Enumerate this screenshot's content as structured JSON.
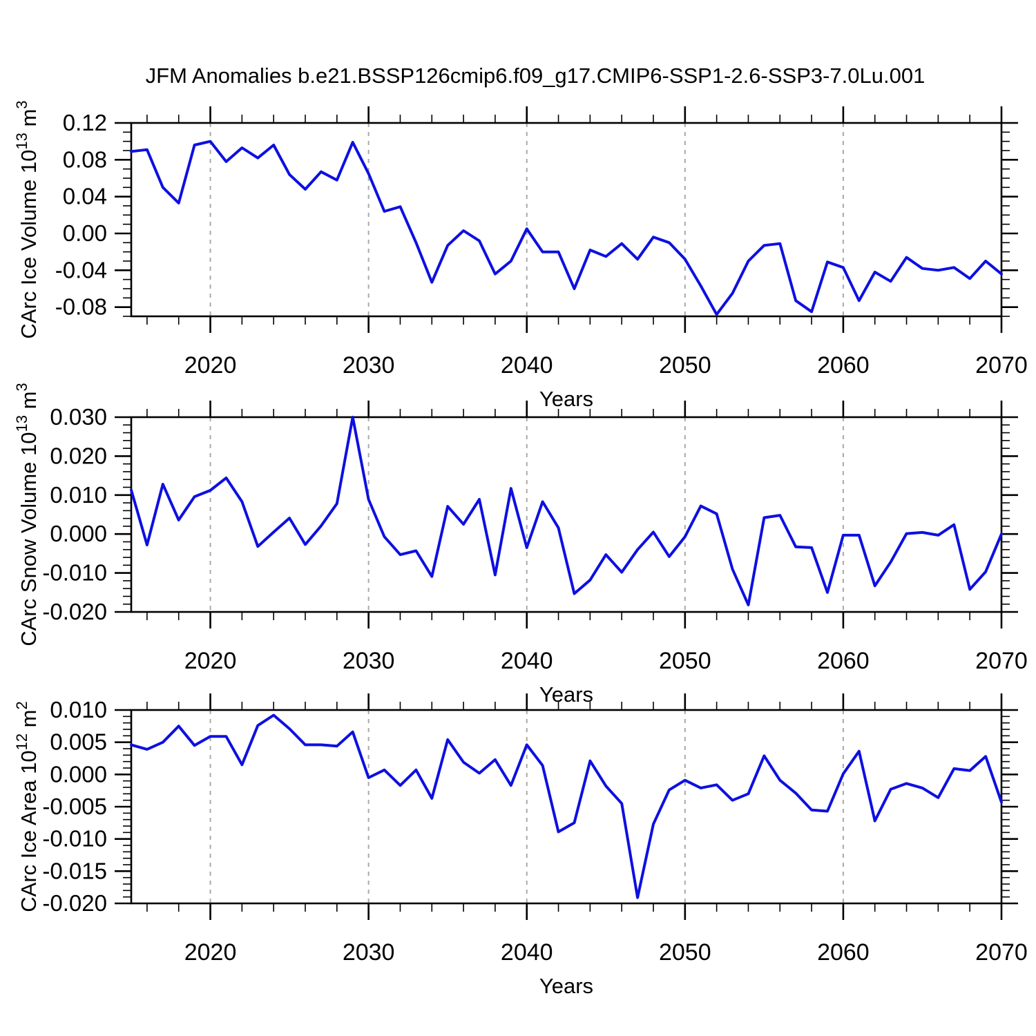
{
  "title": "JFM Anomalies b.e21.BSSP126cmip6.f09_g17.CMIP6-SSP1-2.6-SSP3-7.0Lu.001",
  "colors": {
    "line": "#0d10e0",
    "grid": "#a9a9a9",
    "frame": "#000000",
    "background": "#ffffff"
  },
  "x_axis": {
    "label": "Years",
    "min": 2015,
    "max": 2070,
    "major_ticks": [
      2020,
      2030,
      2040,
      2050,
      2060,
      2070
    ],
    "major_tick_labels": [
      "2020",
      "2030",
      "2040",
      "2050",
      "2060",
      "2070"
    ],
    "minor_step": 2,
    "gridlines": [
      2020,
      2030,
      2040,
      2050,
      2060
    ]
  },
  "chart_data": [
    {
      "type": "line",
      "name": "ice-volume",
      "ylabel": "CArc Ice Volume 10^13 m^3",
      "ylabel_parts": [
        [
          "CArc Ice Volume 10",
          false
        ],
        [
          "13",
          true
        ],
        [
          " m",
          false
        ],
        [
          "3",
          true
        ]
      ],
      "ylim": [
        -0.09,
        0.12
      ],
      "yticks": [
        0.12,
        0.08,
        0.04,
        0.0,
        -0.04,
        -0.08
      ],
      "ytick_labels": [
        "0.12",
        "0.08",
        "0.04",
        "0.00",
        "-0.04",
        "-0.08"
      ],
      "y_minor_step": 0.01,
      "xlabel": "Years",
      "x_start": 2015,
      "x_step": 1,
      "grid": "dashed-vertical",
      "legend": "none",
      "values": [
        0.089,
        0.091,
        0.05,
        0.033,
        0.096,
        0.1,
        0.078,
        0.093,
        0.082,
        0.096,
        0.064,
        0.048,
        0.067,
        0.058,
        0.099,
        0.065,
        0.024,
        0.029,
        -0.01,
        -0.053,
        -0.013,
        0.003,
        -0.008,
        -0.044,
        -0.03,
        0.005,
        -0.02,
        -0.02,
        -0.06,
        -0.018,
        -0.025,
        -0.011,
        -0.028,
        -0.004,
        -0.01,
        -0.028,
        -0.057,
        -0.088,
        -0.065,
        -0.03,
        -0.013,
        -0.011,
        -0.073,
        -0.085,
        -0.031,
        -0.037,
        -0.073,
        -0.042,
        -0.052,
        -0.026,
        -0.038,
        -0.04,
        -0.037,
        -0.049,
        -0.03,
        -0.044
      ]
    },
    {
      "type": "line",
      "name": "snow-volume",
      "ylabel": "CArc Snow Volume 10^13 m^3",
      "ylabel_parts": [
        [
          "CArc Snow Volume 10",
          false
        ],
        [
          "13",
          true
        ],
        [
          " m",
          false
        ],
        [
          "3",
          true
        ]
      ],
      "ylim": [
        -0.02,
        0.03
      ],
      "yticks": [
        0.03,
        0.02,
        0.01,
        0.0,
        -0.01,
        -0.02
      ],
      "ytick_labels": [
        "0.030",
        "0.020",
        "0.010",
        "0.000",
        "-0.010",
        "-0.020"
      ],
      "y_minor_step": 0.002,
      "xlabel": "Years",
      "x_start": 2015,
      "x_step": 1,
      "grid": "dashed-vertical",
      "legend": "none",
      "values": [
        0.0113,
        -0.0028,
        0.0128,
        0.0036,
        0.0096,
        0.0112,
        0.0144,
        0.0083,
        -0.0032,
        0.0005,
        0.0041,
        -0.0027,
        0.0021,
        0.0078,
        0.03,
        0.0089,
        -0.0007,
        -0.0053,
        -0.0043,
        -0.0109,
        0.0071,
        0.0025,
        0.0089,
        -0.0105,
        0.0117,
        -0.0035,
        0.0083,
        0.0016,
        -0.0153,
        -0.0118,
        -0.0053,
        -0.0098,
        -0.004,
        0.0005,
        -0.0058,
        -0.0007,
        0.0072,
        0.0052,
        -0.009,
        -0.0182,
        0.0042,
        0.0048,
        -0.0033,
        -0.0035,
        -0.015,
        -0.0003,
        -0.0003,
        -0.0133,
        -0.0072,
        0.0001,
        0.0004,
        -0.0003,
        0.0024,
        -0.0142,
        -0.0097,
        0.0
      ]
    },
    {
      "type": "line",
      "name": "ice-area",
      "ylabel": "CArc Ice Area 10^12 m^2",
      "ylabel_parts": [
        [
          "CArc Ice Area 10",
          false
        ],
        [
          "12",
          true
        ],
        [
          " m",
          false
        ],
        [
          "2",
          true
        ]
      ],
      "ylim": [
        -0.02,
        0.01
      ],
      "yticks": [
        0.01,
        0.005,
        0.0,
        -0.005,
        -0.01,
        -0.015,
        -0.02
      ],
      "ytick_labels": [
        "0.010",
        "0.005",
        "0.000",
        "-0.005",
        "-0.010",
        "-0.015",
        "-0.020"
      ],
      "y_minor_step": 0.001,
      "xlabel": "Years",
      "x_start": 2015,
      "x_step": 1,
      "grid": "dashed-vertical",
      "legend": "none",
      "values": [
        0.0046,
        0.0039,
        0.005,
        0.0075,
        0.0045,
        0.0059,
        0.0059,
        0.0015,
        0.0076,
        0.0092,
        0.0071,
        0.0046,
        0.0046,
        0.0044,
        0.0066,
        -0.0005,
        0.0007,
        -0.0017,
        0.0007,
        -0.0037,
        0.0054,
        0.0019,
        0.0002,
        0.0023,
        -0.0017,
        0.0046,
        0.0014,
        -0.0089,
        -0.0075,
        0.0021,
        -0.0018,
        -0.0045,
        -0.0191,
        -0.0077,
        -0.0024,
        -0.0009,
        -0.0021,
        -0.0016,
        -0.004,
        -0.003,
        0.0029,
        -0.0009,
        -0.0029,
        -0.0055,
        -0.0057,
        0.0001,
        0.0036,
        -0.0072,
        -0.0023,
        -0.0014,
        -0.0021,
        -0.0036,
        0.0009,
        0.0006,
        0.0028,
        -0.0043
      ]
    }
  ]
}
